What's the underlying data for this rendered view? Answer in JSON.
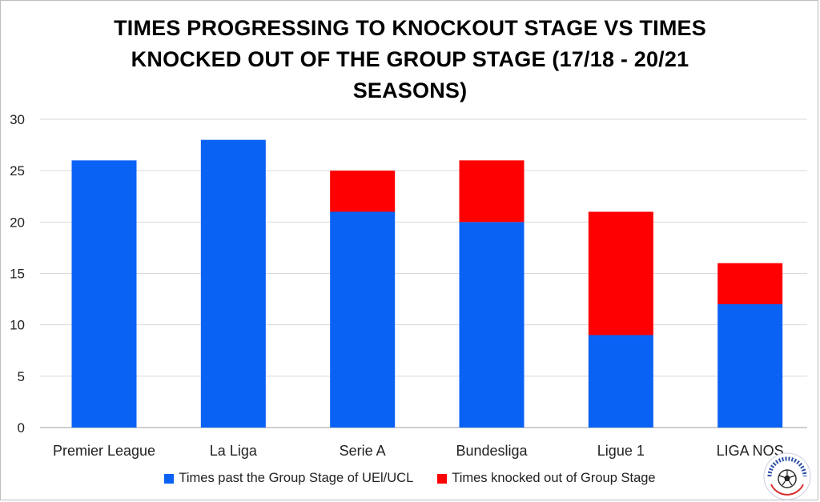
{
  "chart_data": {
    "type": "bar",
    "stacked": true,
    "title": "TIMES PROGRESSING TO KNOCKOUT STAGE VS TIMES KNOCKED OUT OF THE GROUP STAGE (17/18 - 20/21 SEASONS)",
    "categories": [
      "Premier League",
      "La Liga",
      "Serie A",
      "Bundesliga",
      "Ligue 1",
      "LIGA NOS"
    ],
    "series": [
      {
        "name": "Times past the Group Stage of UEl/UCL",
        "color": "#0a62f5",
        "values": [
          26,
          28,
          21,
          20,
          9,
          12
        ]
      },
      {
        "name": "Times knocked out of Group Stage",
        "color": "#ff0000",
        "values": [
          0,
          0,
          4,
          6,
          12,
          4
        ]
      }
    ],
    "ylim": [
      0,
      30
    ],
    "yticks": [
      0,
      5,
      10,
      15,
      20,
      25,
      30
    ],
    "grid": true,
    "legend": "bottom",
    "xlabel": "",
    "ylabel": ""
  },
  "logo": {
    "icon": "soccer-ball-logo-icon",
    "text": "OFF PITCH FOOTBALL NEWS"
  }
}
